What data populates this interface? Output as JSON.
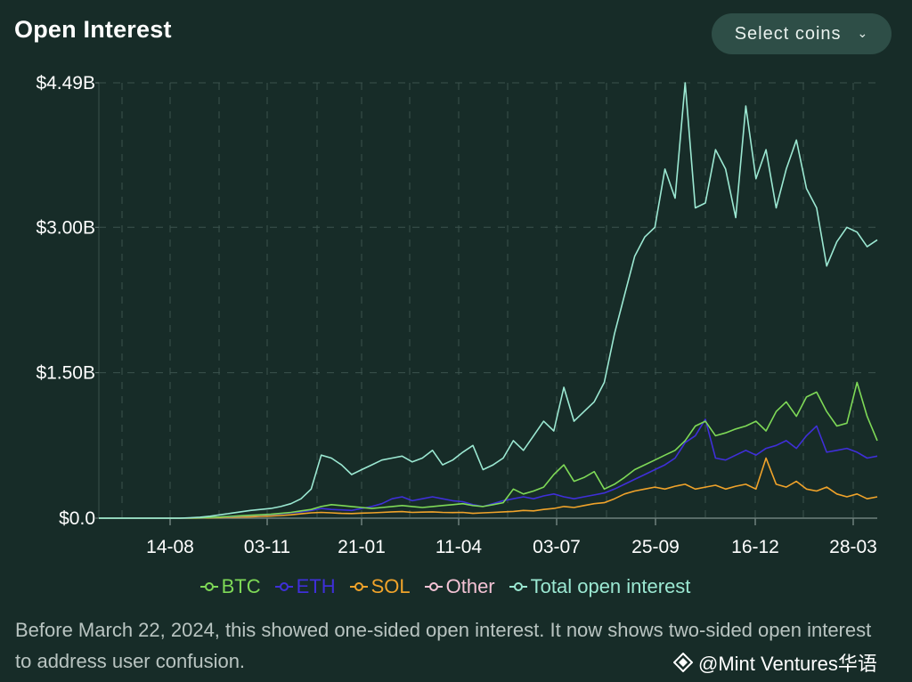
{
  "header": {
    "title": "Open Interest",
    "select_label": "Select coins"
  },
  "note": "Before March 22, 2024, this showed one-sided open interest. It now shows two-sided open interest to address user confusion.",
  "watermark": "@Mint Ventures华语",
  "chart_data": {
    "type": "line",
    "title": "Open Interest",
    "y_ticks": [
      "$0.0",
      "$1.50B",
      "$3.00B",
      "$4.49B"
    ],
    "ylim": [
      0,
      4.49
    ],
    "x_ticks": [
      "14-08",
      "03-11",
      "21-01",
      "11-04",
      "03-07",
      "25-09",
      "16-12",
      "28-03"
    ],
    "grid": true,
    "legend_position": "bottom",
    "series": [
      {
        "name": "BTC",
        "color": "#7ed957",
        "values": [
          0,
          0,
          0,
          0,
          0,
          0,
          0,
          0,
          0,
          0.002,
          0.004,
          0.008,
          0.012,
          0.018,
          0.025,
          0.03,
          0.035,
          0.04,
          0.05,
          0.06,
          0.075,
          0.09,
          0.12,
          0.14,
          0.13,
          0.12,
          0.11,
          0.1,
          0.11,
          0.12,
          0.13,
          0.12,
          0.11,
          0.12,
          0.13,
          0.14,
          0.15,
          0.13,
          0.12,
          0.14,
          0.16,
          0.3,
          0.25,
          0.28,
          0.32,
          0.45,
          0.55,
          0.38,
          0.42,
          0.48,
          0.3,
          0.35,
          0.42,
          0.5,
          0.55,
          0.6,
          0.65,
          0.7,
          0.8,
          0.95,
          1.0,
          0.85,
          0.88,
          0.92,
          0.95,
          1.0,
          0.9,
          1.1,
          1.2,
          1.05,
          1.25,
          1.3,
          1.1,
          0.95,
          0.98,
          1.4,
          1.05,
          0.8
        ]
      },
      {
        "name": "ETH",
        "color": "#3f2fd8",
        "values": [
          0,
          0,
          0,
          0,
          0,
          0,
          0,
          0,
          0,
          0.002,
          0.004,
          0.008,
          0.012,
          0.016,
          0.022,
          0.028,
          0.032,
          0.038,
          0.045,
          0.055,
          0.065,
          0.08,
          0.1,
          0.09,
          0.085,
          0.08,
          0.1,
          0.12,
          0.15,
          0.2,
          0.22,
          0.18,
          0.2,
          0.22,
          0.2,
          0.18,
          0.17,
          0.14,
          0.12,
          0.15,
          0.18,
          0.2,
          0.22,
          0.2,
          0.23,
          0.25,
          0.22,
          0.2,
          0.22,
          0.24,
          0.26,
          0.3,
          0.35,
          0.4,
          0.45,
          0.5,
          0.55,
          0.62,
          0.78,
          0.85,
          1.02,
          0.62,
          0.6,
          0.65,
          0.7,
          0.65,
          0.72,
          0.75,
          0.8,
          0.72,
          0.85,
          0.95,
          0.68,
          0.7,
          0.72,
          0.68,
          0.62,
          0.64
        ]
      },
      {
        "name": "SOL",
        "color": "#f0a32a",
        "values": [
          0,
          0,
          0,
          0,
          0,
          0,
          0,
          0,
          0,
          0.001,
          0.002,
          0.004,
          0.006,
          0.008,
          0.012,
          0.015,
          0.018,
          0.022,
          0.028,
          0.035,
          0.045,
          0.055,
          0.06,
          0.055,
          0.05,
          0.048,
          0.052,
          0.055,
          0.06,
          0.065,
          0.068,
          0.06,
          0.062,
          0.065,
          0.06,
          0.058,
          0.06,
          0.05,
          0.055,
          0.06,
          0.065,
          0.07,
          0.08,
          0.075,
          0.09,
          0.1,
          0.12,
          0.11,
          0.13,
          0.15,
          0.16,
          0.2,
          0.25,
          0.28,
          0.3,
          0.32,
          0.3,
          0.33,
          0.35,
          0.3,
          0.32,
          0.34,
          0.3,
          0.33,
          0.35,
          0.3,
          0.62,
          0.35,
          0.32,
          0.38,
          0.3,
          0.28,
          0.32,
          0.25,
          0.22,
          0.25,
          0.2,
          0.22
        ]
      },
      {
        "name": "Other",
        "color": "#f3c2d4",
        "values": []
      },
      {
        "name": "Total open interest",
        "color": "#9be8d2",
        "values": [
          0,
          0,
          0,
          0,
          0,
          0,
          0,
          0,
          0,
          0.005,
          0.01,
          0.02,
          0.035,
          0.05,
          0.065,
          0.08,
          0.09,
          0.1,
          0.12,
          0.15,
          0.2,
          0.3,
          0.65,
          0.62,
          0.55,
          0.45,
          0.5,
          0.55,
          0.6,
          0.62,
          0.64,
          0.58,
          0.62,
          0.7,
          0.55,
          0.6,
          0.68,
          0.75,
          0.5,
          0.55,
          0.62,
          0.8,
          0.7,
          0.85,
          1.0,
          0.9,
          1.35,
          1.0,
          1.1,
          1.2,
          1.4,
          1.9,
          2.3,
          2.7,
          2.9,
          3.0,
          3.6,
          3.3,
          4.49,
          3.2,
          3.25,
          3.8,
          3.6,
          3.1,
          4.25,
          3.5,
          3.8,
          3.2,
          3.6,
          3.9,
          3.4,
          3.2,
          2.6,
          2.85,
          3.0,
          2.95,
          2.8,
          2.87
        ]
      }
    ]
  },
  "colors": {
    "background": "#172c28",
    "button_bg": "#2e4e47",
    "grid": "#3b524d",
    "note_text": "#b9c4c1"
  }
}
